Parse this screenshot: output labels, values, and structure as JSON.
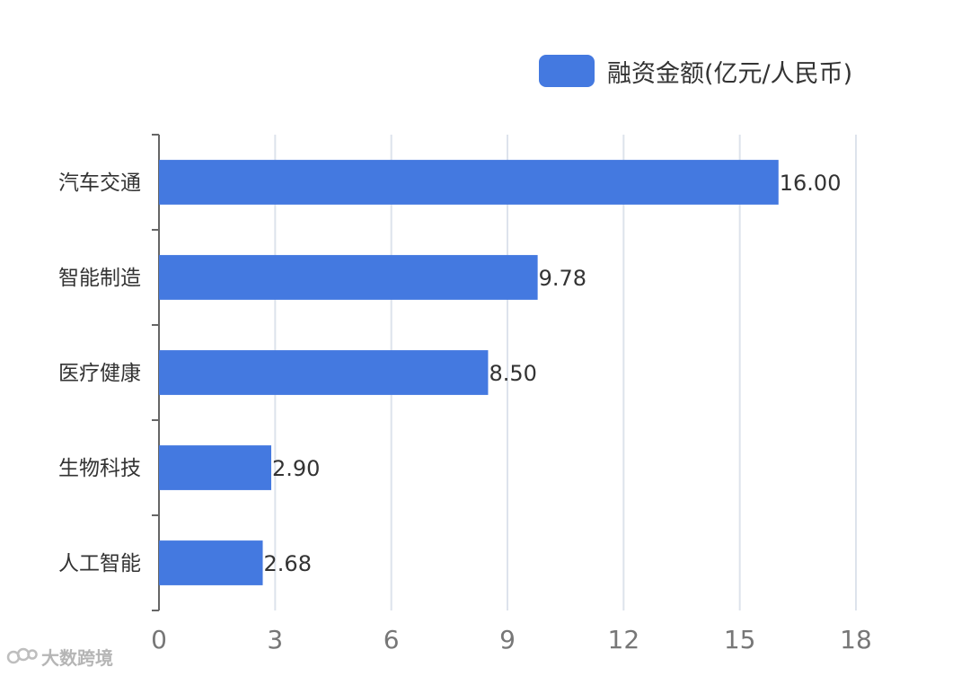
{
  "chart_data": {
    "type": "bar",
    "orientation": "horizontal",
    "categories": [
      "汽车交通",
      "智能制造",
      "医疗健康",
      "生物科技",
      "人工智能"
    ],
    "series": [
      {
        "name": "融资金额(亿元/人民币)",
        "values": [
          16.0,
          9.78,
          8.5,
          2.9,
          2.68
        ]
      }
    ],
    "data_labels": [
      "16.00",
      "9.78",
      "8.50",
      "2.90",
      "2.68"
    ],
    "x_ticks": [
      0,
      3,
      6,
      9,
      12,
      15,
      18
    ],
    "xlim": [
      0,
      18
    ],
    "grid": true,
    "legend_position": "top-right",
    "bar_color": "#4479e0",
    "grid_color": "#dde3ec",
    "axis_color": "#666666",
    "tick_label_color": "#777777",
    "category_label_color": "#333333",
    "value_label_color": "#333333"
  },
  "legend": {
    "label": "融资金额(亿元/人民币)"
  },
  "watermark": {
    "text": "大数跨境",
    "logo_icon": "dashuju-logo-icon"
  }
}
